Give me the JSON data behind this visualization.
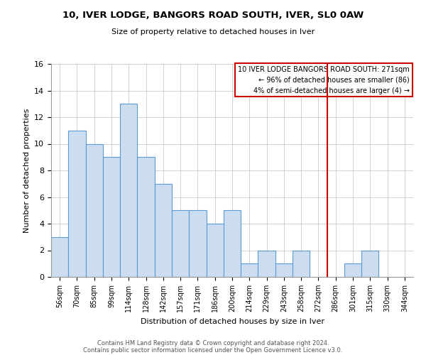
{
  "title": "10, IVER LODGE, BANGORS ROAD SOUTH, IVER, SL0 0AW",
  "subtitle": "Size of property relative to detached houses in Iver",
  "xlabel": "Distribution of detached houses by size in Iver",
  "ylabel": "Number of detached properties",
  "bin_labels": [
    "56sqm",
    "70sqm",
    "85sqm",
    "99sqm",
    "114sqm",
    "128sqm",
    "142sqm",
    "157sqm",
    "171sqm",
    "186sqm",
    "200sqm",
    "214sqm",
    "229sqm",
    "243sqm",
    "258sqm",
    "272sqm",
    "286sqm",
    "301sqm",
    "315sqm",
    "330sqm",
    "344sqm"
  ],
  "bar_heights": [
    3,
    11,
    10,
    9,
    13,
    9,
    7,
    5,
    5,
    4,
    5,
    1,
    2,
    1,
    2,
    0,
    0,
    1,
    2,
    0,
    0
  ],
  "bar_color": "#ccddf0",
  "bar_edge_color": "#5b9bd5",
  "vline_x_label": "272sqm",
  "vline_color": "#cc0000",
  "annotation_title": "10 IVER LODGE BANGORS ROAD SOUTH: 271sqm",
  "annotation_line1": "← 96% of detached houses are smaller (86)",
  "annotation_line2": "4% of semi-detached houses are larger (4) →",
  "annotation_box_color": "#cc0000",
  "ylim": [
    0,
    16
  ],
  "yticks": [
    0,
    2,
    4,
    6,
    8,
    10,
    12,
    14,
    16
  ],
  "footer1": "Contains HM Land Registry data © Crown copyright and database right 2024.",
  "footer2": "Contains public sector information licensed under the Open Government Licence v3.0."
}
